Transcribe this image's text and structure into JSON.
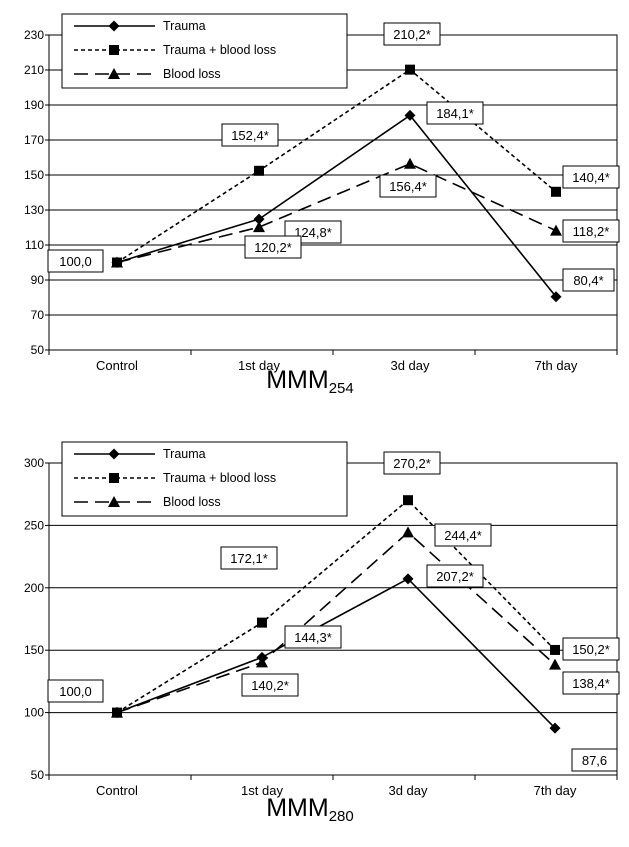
{
  "chart_data": [
    {
      "type": "line",
      "title": "MMM",
      "title_sub": "254",
      "categories": [
        "Control",
        "1st day",
        "3d day",
        "7th day"
      ],
      "ylim": [
        50,
        230
      ],
      "yticks": [
        50,
        70,
        90,
        110,
        130,
        150,
        170,
        190,
        210,
        230
      ],
      "grid": true,
      "legend_position": "top-left",
      "series": [
        {
          "name": "Trauma",
          "style": "solid",
          "marker": "diamond",
          "values": [
            100.0,
            124.8,
            184.1,
            80.4
          ],
          "labels": [
            "100,0",
            "124,8*",
            "184,1*",
            "80,4*"
          ]
        },
        {
          "name": "Trauma + blood loss",
          "style": "dotted",
          "marker": "square",
          "values": [
            100.0,
            152.4,
            210.2,
            140.4
          ],
          "labels": [
            "",
            "152,4*",
            "210,2*",
            "140,4*"
          ]
        },
        {
          "name": "Blood loss",
          "style": "dashed",
          "marker": "triangle",
          "values": [
            100.0,
            120.2,
            156.4,
            118.2
          ],
          "labels": [
            "",
            "120,2*",
            "156,4*",
            "118,2*"
          ]
        }
      ]
    },
    {
      "type": "line",
      "title": "MMM",
      "title_sub": "280",
      "categories": [
        "Control",
        "1st day",
        "3d day",
        "7th day"
      ],
      "ylim": [
        50,
        300
      ],
      "yticks": [
        50,
        100,
        150,
        200,
        250,
        300
      ],
      "grid": true,
      "legend_position": "top-left",
      "series": [
        {
          "name": "Trauma",
          "style": "solid",
          "marker": "diamond",
          "values": [
            100.0,
            144.3,
            207.2,
            87.6
          ],
          "labels": [
            "100,0",
            "144,3*",
            "207,2*",
            "87,6"
          ]
        },
        {
          "name": "Trauma + blood loss",
          "style": "dotted",
          "marker": "square",
          "values": [
            100.0,
            172.1,
            270.2,
            150.2
          ],
          "labels": [
            "",
            "172,1*",
            "270,2*",
            "150,2*"
          ]
        },
        {
          "name": "Blood loss",
          "style": "dashed",
          "marker": "triangle",
          "values": [
            100.0,
            140.2,
            244.4,
            138.4
          ],
          "labels": [
            "",
            "140,2*",
            "244,4*",
            "138,4*"
          ]
        }
      ]
    }
  ]
}
